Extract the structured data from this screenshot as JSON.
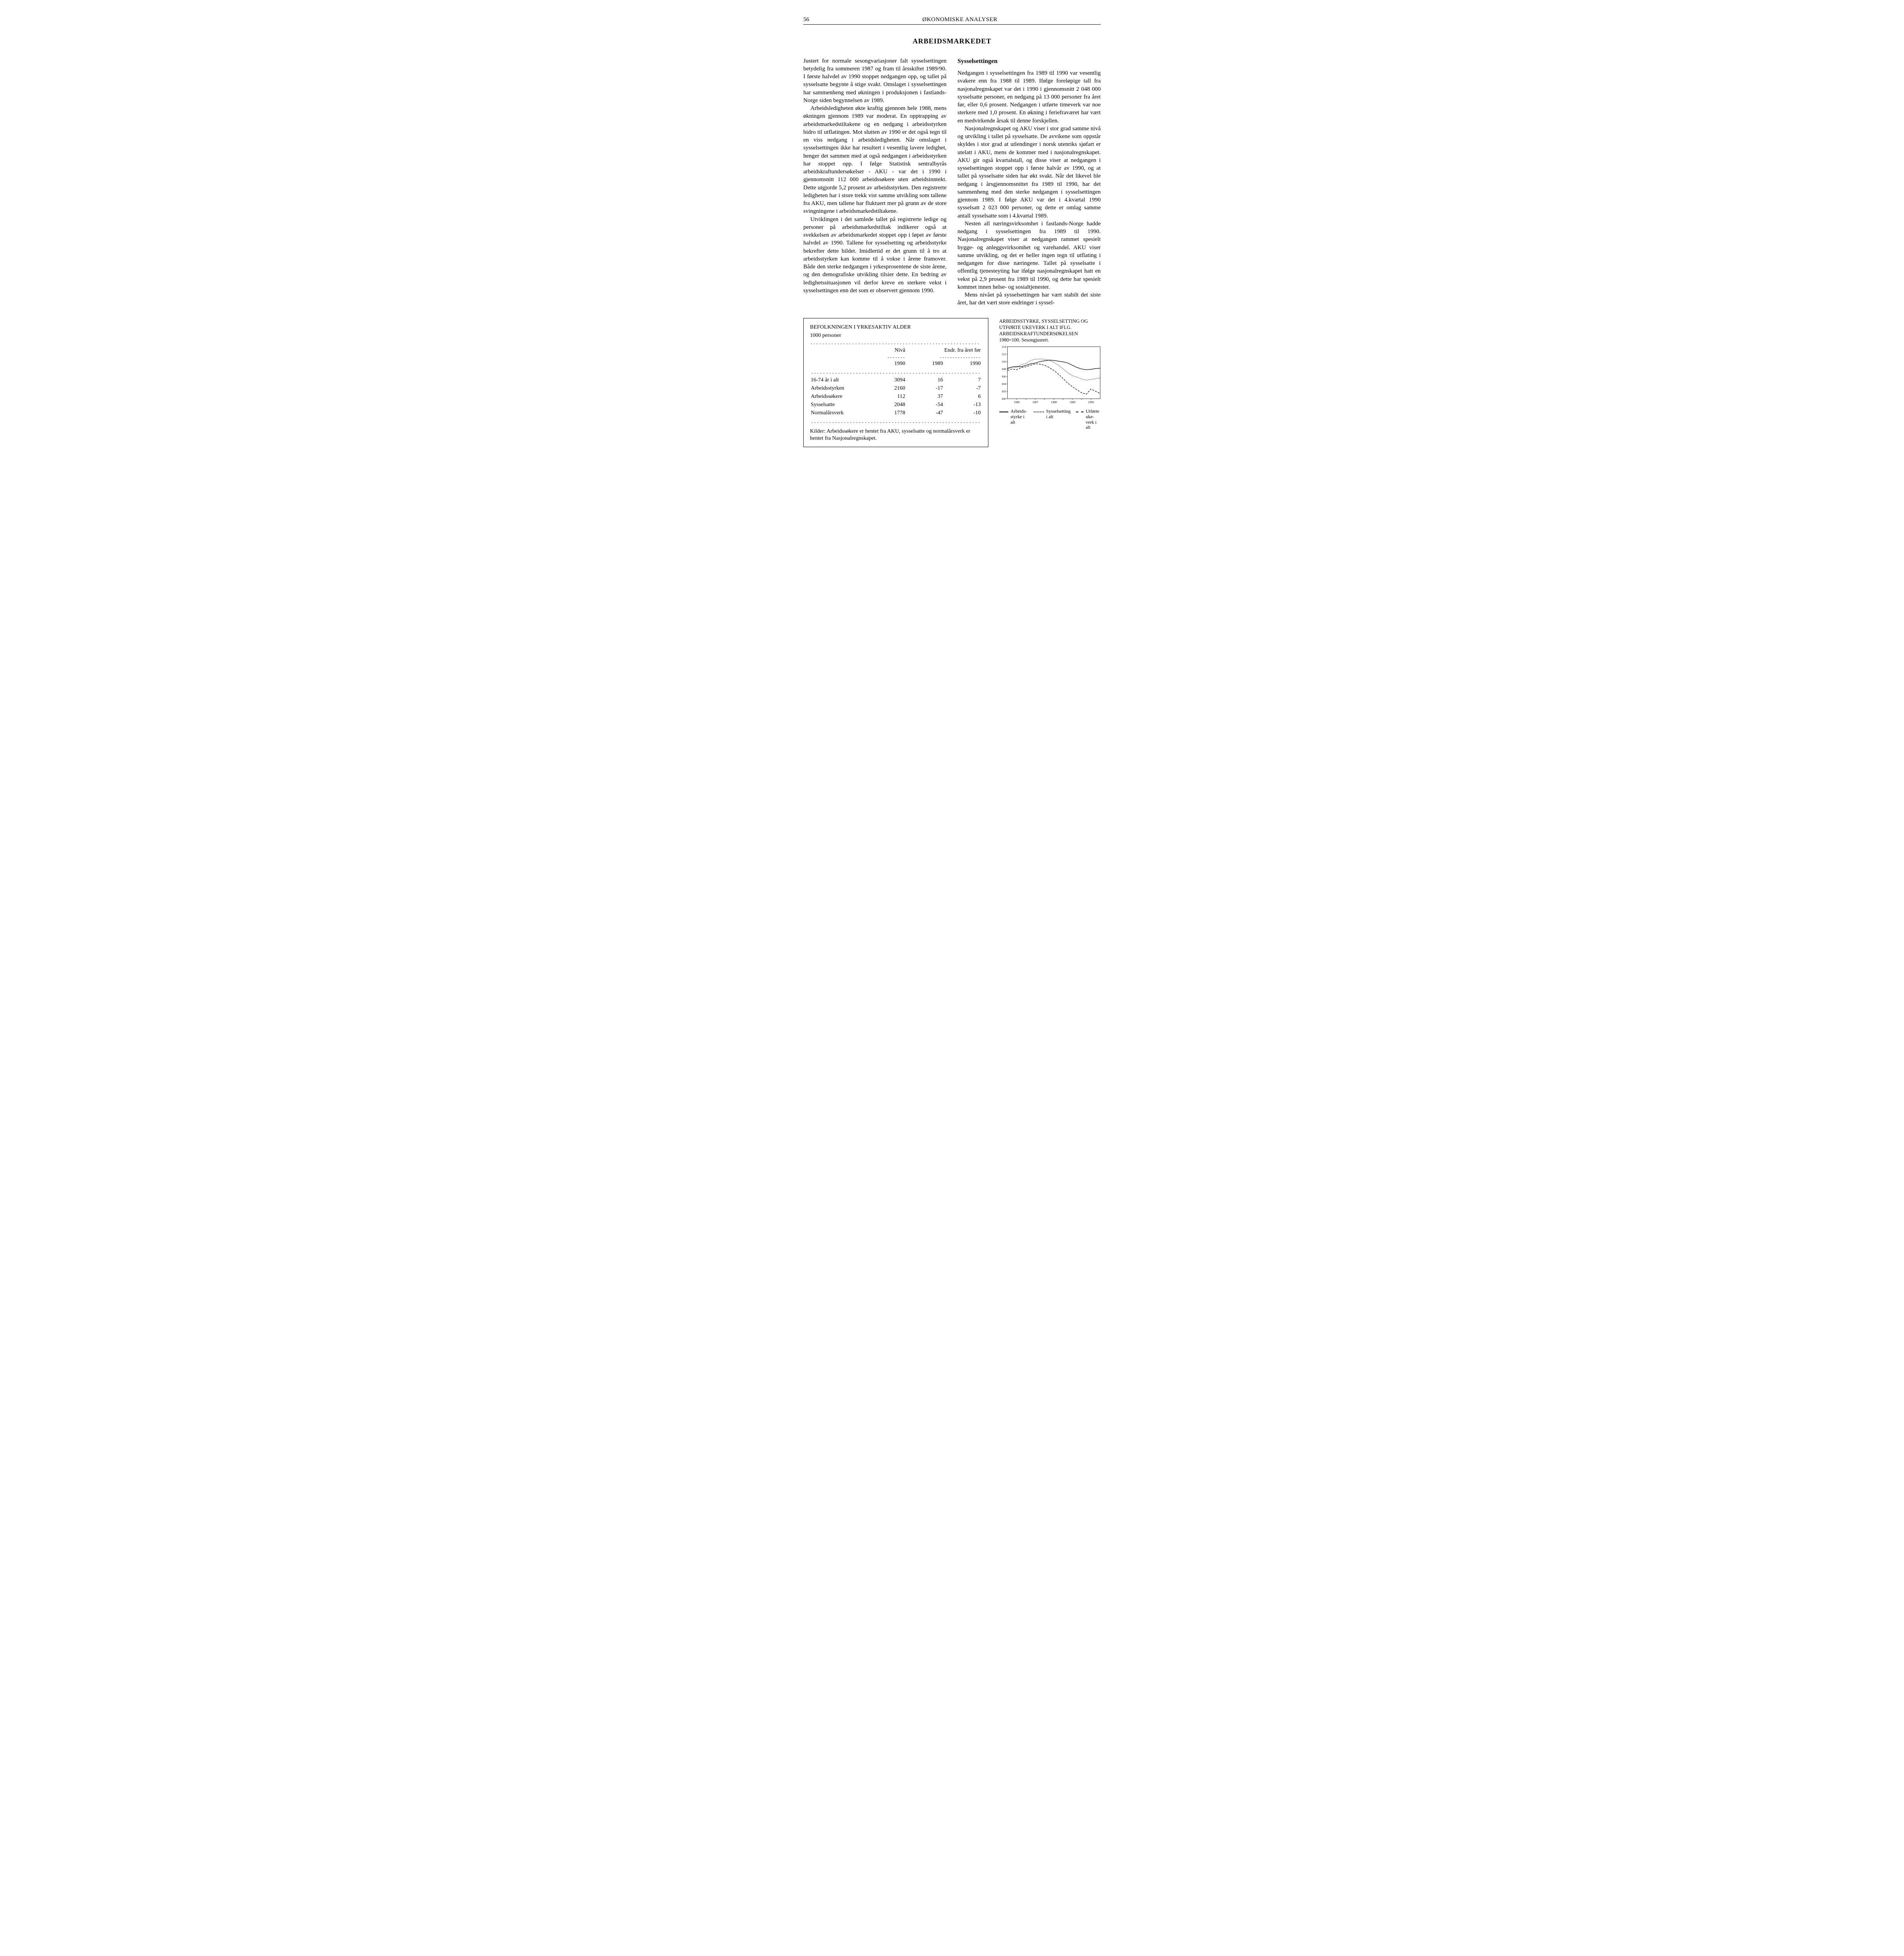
{
  "page_number": "56",
  "running_header": "ØKONOMISKE ANALYSER",
  "title": "ARBEIDSMARKEDET",
  "left_column": {
    "paragraphs": [
      "Justert for normale sesongvariasjoner falt sysselsettingen betydelig fra sommeren 1987 og fram til årsskiftet 1989/90. I første halvdel av 1990 stoppet nedgangen opp, og tallet på sysselsatte begynte å stige svakt. Omslaget i sysselsettingen har sammenheng med økningen i produksjonen i fastlands-Norge siden begynnelsen av 1989.",
      "Arbeidsledigheten økte kraftig gjennom hele 1988, mens økningen gjennom 1989 var moderat. En opptrapping av arbeidsmarkedstiltakene og en nedgang i arbeidsstyrken bidro til utflatingen. Mot slutten av 1990 er det også tegn til en viss nedgang i arbeidsledigheten. Når omslaget i sysselsettingen ikke har resultert i vesentlig lavere ledighet, henger det sammen med at også nedgangen i arbeidsstyrken har stoppet opp. I følge Statistisk sentralbyrås arbeidskraftundersøkelser - AKU - var det i 1990 i gjennomsnitt 112 000 arbeidssøkere uten arbeidsinntekt. Dette utgjorde 5,2 prosent av arbeidsstyrken. Den registrerte ledigheten har i store trekk vist samme utvikling som tallene fra AKU, men tallene har fluktuert mer på grunn av de store svingningene i arbeidsmarkedstiltakene.",
      "Utviklingen i det samlede tallet på registrerte ledige og personer på arbeidsmarkedstiltak indikerer også at svekkelsen av arbeidsmarkedet stoppet opp i løpet av første halvdel av 1990. Tallene for sysselsetting og arbeidsstyrke bekrefter dette bildet. Imidlertid er det grunn til å tro at arbeidsstyrken kan komme til å vokse i årene framover. Både den sterke nedgangen i yrkesprosentene de siste årene, og den demografiske utvikling tilsier dette. En bedring av ledighetssituasjonen vil derfor kreve en sterkere vekst i sysselsettingen enn det som er observert gjennom 1990."
    ]
  },
  "right_column": {
    "heading": "Sysselsettingen",
    "paragraphs": [
      "Nedgangen i sysselsettingen fra 1989 til 1990 var vesentlig svakere enn fra 1988 til 1989. Ifølge foreløpige tall fra nasjonalregnskapet var det i 1990 i gjennomsnitt 2 048 000 sysselsatte personer, en nedgang på 13 000 personer fra året før, eller 0,6 prosent. Nedgangen i utførte timeverk var noe sterkere med 1,0 prosent. En økning i feriefraværet har vært en medvirkende årsak til denne forskjellen.",
      "Nasjonalregnskapet og AKU viser i stor grad samme nivå og utvikling i tallet på sysselsatte. De avvikene som oppstår skyldes i stor grad at utlendinger i norsk utenriks sjøfart er utelatt i AKU, mens de kommer med i nasjonalregnskapet. AKU gir også kvartalstall, og disse viser at nedgangen i sysselsettingen stoppet opp i første halvår av 1990, og at tallet på sysselsatte siden har økt svakt. Når det likevel ble nedgang i årsgjennomsnittet fra 1989 til 1990, har det sammenheng med den sterke nedgangen i sysselsettingen gjennom 1989. I følge AKU var det i 4.kvartal 1990 sysselsatt 2 023 000 personer, og dette er omlag samme antall sysselsatte som i 4.kvartal 1989.",
      "Nesten all næringsvirksomhet i fastlands-Norge hadde nedgang i sysselsettingen fra 1989 til 1990. Nasjonalregnskapet viser at nedgangen rammet spesielt bygge- og anleggsvirksomhet og varehandel. AKU viser samme utvikling, og det er heller ingen tegn til utflating i nedgangen for disse næringene. Tallet på sysselsatte i offentlig tjenesteyting har ifølge nasjonalregnskapet hatt en vekst på 2,9 prosent fra 1989 til 1990, og dette har spesielt kommet innen helse- og sosialtjenester.",
      "Mens nivået på sysselsettingen har vært stabilt det siste året, har det vært store endringer i syssel-"
    ]
  },
  "table": {
    "title_line1": "BEFOLKNINGEN I YRKESAKTIV ALDER",
    "title_line2": "1000 personer",
    "col_headers": {
      "level": "Nivå",
      "change": "Endr. fra året før"
    },
    "year_headers": [
      "1990",
      "1989",
      "1990"
    ],
    "rows": [
      {
        "label": "16-74 år i alt",
        "level": "3094",
        "c1": "16",
        "c2": "7"
      },
      {
        "label": "Arbeidsstyrken",
        "level": "2160",
        "c1": "-17",
        "c2": "-7"
      },
      {
        "label": "Arbeidssøkere",
        "level": "112",
        "c1": "37",
        "c2": "6"
      },
      {
        "label": "Sysselsatte",
        "level": "2048",
        "c1": "-54",
        "c2": "-13"
      },
      {
        "label": "Normalårsverk",
        "level": "1778",
        "c1": "-47",
        "c2": "-10"
      }
    ],
    "source": "Kilder: Arbeidssøkere er hentet fra AKU, sysselsatte og normalårsverk er hentet fra Nasjonalregnskapet."
  },
  "chart": {
    "title": "ARBEIDSSTYRKE, SYSSELSETTING OG UTFØRTE UKEVERK I ALT IFLG. ARBEIDSKRAFTUNDERSØKELSEN",
    "subtitle": "1980=100. Sesongjustert.",
    "type": "line",
    "ylim": [
      100,
      114
    ],
    "ytick_step": 2,
    "yticks": [
      100,
      102,
      104,
      106,
      108,
      110,
      112,
      114
    ],
    "x_labels": [
      "1986",
      "1987",
      "1988",
      "1989",
      "1990"
    ],
    "background_color": "#ffffff",
    "axis_color": "#000000",
    "series": [
      {
        "name": "Arbeidsstyrke i alt",
        "style": "solid",
        "color": "#000000",
        "points": [
          [
            0.0,
            108.2
          ],
          [
            0.05,
            108.5
          ],
          [
            0.1,
            108.7
          ],
          [
            0.15,
            108.6
          ],
          [
            0.2,
            109.0
          ],
          [
            0.25,
            109.4
          ],
          [
            0.3,
            109.6
          ],
          [
            0.35,
            110.0
          ],
          [
            0.4,
            110.2
          ],
          [
            0.45,
            110.4
          ],
          [
            0.5,
            110.3
          ],
          [
            0.55,
            110.1
          ],
          [
            0.6,
            109.9
          ],
          [
            0.65,
            109.6
          ],
          [
            0.7,
            109.0
          ],
          [
            0.75,
            108.4
          ],
          [
            0.8,
            108.0
          ],
          [
            0.85,
            107.8
          ],
          [
            0.9,
            107.9
          ],
          [
            0.95,
            108.1
          ],
          [
            1.0,
            108.2
          ]
        ]
      },
      {
        "name": "Sysselsetting i alt",
        "style": "dotted",
        "color": "#000000",
        "points": [
          [
            0.0,
            108.0
          ],
          [
            0.05,
            108.6
          ],
          [
            0.1,
            108.4
          ],
          [
            0.15,
            109.2
          ],
          [
            0.2,
            109.5
          ],
          [
            0.25,
            110.3
          ],
          [
            0.3,
            110.6
          ],
          [
            0.35,
            110.7
          ],
          [
            0.4,
            110.6
          ],
          [
            0.45,
            110.3
          ],
          [
            0.5,
            109.8
          ],
          [
            0.55,
            109.0
          ],
          [
            0.6,
            108.0
          ],
          [
            0.65,
            107.0
          ],
          [
            0.7,
            106.2
          ],
          [
            0.75,
            105.8
          ],
          [
            0.8,
            105.3
          ],
          [
            0.85,
            105.0
          ],
          [
            0.9,
            105.2
          ],
          [
            0.95,
            105.4
          ],
          [
            1.0,
            105.6
          ]
        ]
      },
      {
        "name": "Utførte ukeverk i alt",
        "style": "dashed",
        "color": "#000000",
        "points": [
          [
            0.0,
            107.6
          ],
          [
            0.05,
            108.0
          ],
          [
            0.1,
            107.8
          ],
          [
            0.15,
            108.4
          ],
          [
            0.2,
            108.6
          ],
          [
            0.25,
            109.0
          ],
          [
            0.3,
            109.4
          ],
          [
            0.35,
            109.3
          ],
          [
            0.4,
            109.0
          ],
          [
            0.45,
            108.4
          ],
          [
            0.5,
            107.6
          ],
          [
            0.55,
            106.6
          ],
          [
            0.6,
            105.4
          ],
          [
            0.65,
            104.2
          ],
          [
            0.7,
            103.2
          ],
          [
            0.75,
            102.4
          ],
          [
            0.8,
            101.6
          ],
          [
            0.85,
            101.2
          ],
          [
            0.9,
            102.6
          ],
          [
            0.95,
            102.0
          ],
          [
            1.0,
            101.4
          ]
        ]
      }
    ],
    "legend": [
      {
        "label": "Arbeids-\nstyrke i alt",
        "style": "solid"
      },
      {
        "label": "Sysselsetting\ni alt",
        "style": "dotted"
      },
      {
        "label": "Utførte uke-\nverk i alt",
        "style": "dashed"
      }
    ]
  }
}
